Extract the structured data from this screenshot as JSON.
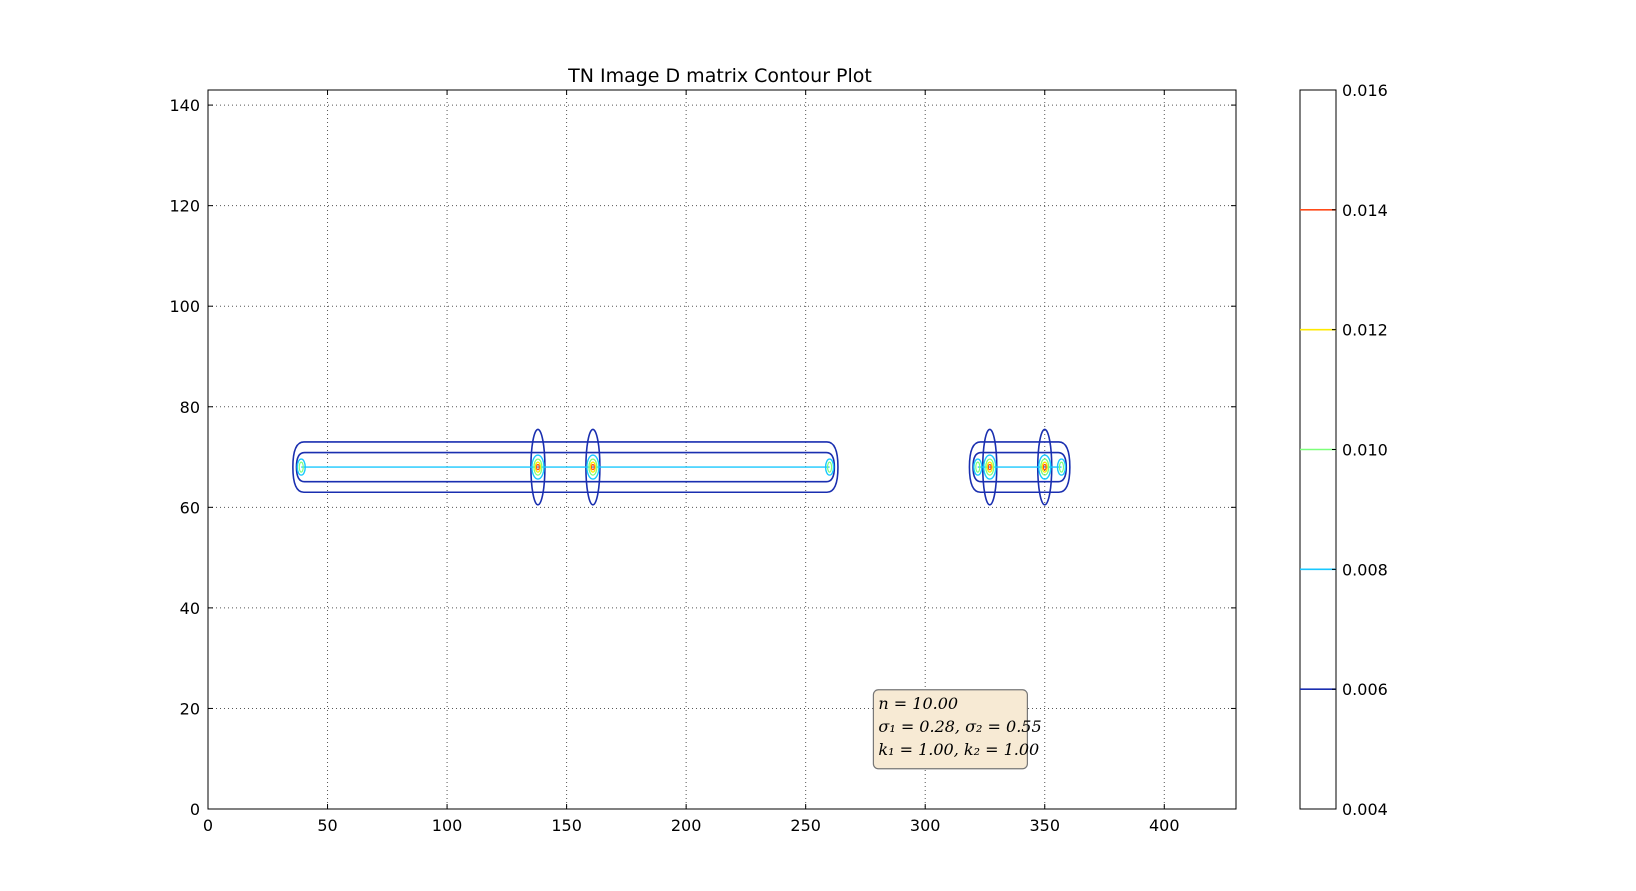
{
  "chart_data": {
    "type": "contour",
    "title": "TN Image D matrix Contour Plot",
    "xlabel": "",
    "ylabel": "",
    "xlim": [
      0,
      430
    ],
    "ylim": [
      0,
      143
    ],
    "xticks": [
      0,
      50,
      100,
      150,
      200,
      250,
      300,
      350,
      400
    ],
    "yticks": [
      0,
      20,
      40,
      60,
      80,
      100,
      120,
      140
    ],
    "grid": true,
    "colorbar": {
      "range": [
        0.004,
        0.016
      ],
      "ticks": [
        "0.004",
        "0.006",
        "0.008",
        "0.010",
        "0.012",
        "0.014",
        "0.016"
      ],
      "levels": [
        {
          "value": 0.006,
          "color": "#1a2fb0"
        },
        {
          "value": 0.008,
          "color": "#19c8ff"
        },
        {
          "value": 0.01,
          "color": "#7dff7a"
        },
        {
          "value": 0.012,
          "color": "#ffea00"
        },
        {
          "value": 0.014,
          "color": "#ff4a1a"
        }
      ]
    },
    "bands": [
      {
        "x0": 37,
        "x1": 262,
        "y": 68,
        "bumps": [
          138,
          161
        ]
      },
      {
        "x0": 320,
        "x1": 359,
        "y": 68,
        "bumps": [
          327,
          350
        ]
      }
    ],
    "peaks": [
      {
        "x": 138,
        "y": 68
      },
      {
        "x": 161,
        "y": 68
      },
      {
        "x": 327,
        "y": 68
      },
      {
        "x": 350,
        "y": 68
      }
    ],
    "annotation": {
      "lines": [
        "n = 10.00",
        "σ₁ = 0.28, σ₂ = 0.55",
        "k₁ = 1.00, k₂ = 1.00"
      ],
      "anchor": [
        280,
        8
      ],
      "bg": "#f7ead4",
      "border": "#777777"
    }
  }
}
